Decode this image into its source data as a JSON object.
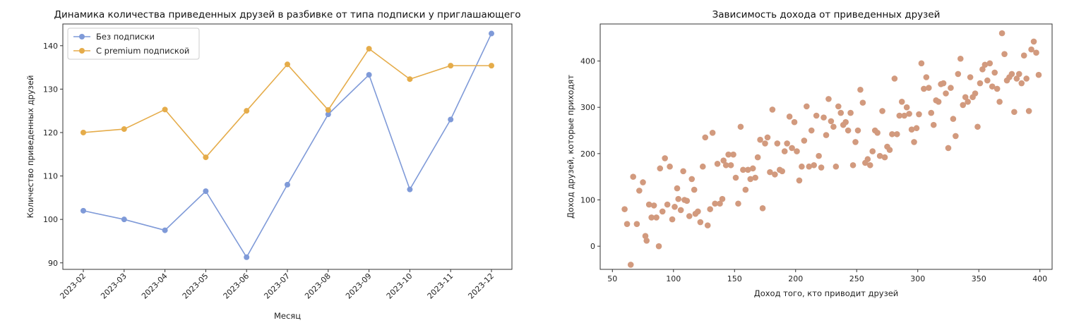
{
  "chart_data": [
    {
      "type": "line",
      "title": "Динамика количества приведенных друзей в разбивке от типа подписки у приглашающего",
      "xlabel": "Месяц",
      "ylabel": "Количество приведенных друзей",
      "categories": [
        "2023-02",
        "2023-03",
        "2023-04",
        "2023-05",
        "2023-06",
        "2023-07",
        "2023-08",
        "2023-09",
        "2023-10",
        "2023-11",
        "2023-12"
      ],
      "series": [
        {
          "name": "Без подписки",
          "color": "#7f9ad8",
          "values": [
            102,
            100,
            97.5,
            106.5,
            91.3,
            108,
            124.2,
            133.3,
            106.9,
            123,
            142.8
          ]
        },
        {
          "name": "С premium подпиской",
          "color": "#e5ac4a",
          "values": [
            120,
            120.8,
            125.3,
            114.3,
            125,
            135.7,
            125.2,
            139.3,
            132.3,
            135.4,
            135.4
          ]
        }
      ],
      "ylim": [
        88.5,
        145
      ],
      "yticks": [
        90,
        100,
        110,
        120,
        130,
        140
      ],
      "legend": "top-left",
      "grid": false
    },
    {
      "type": "scatter",
      "title": "Зависимость дохода от приведенных друзей",
      "xlabel": "Доход того, кто приводит друзей",
      "ylabel": "Доход друзей, которые приходят",
      "color": "#d29a7e",
      "xlim": [
        40,
        410
      ],
      "ylim": [
        -50,
        480
      ],
      "xticks": [
        50,
        100,
        150,
        200,
        250,
        300,
        350,
        400
      ],
      "yticks": [
        0,
        100,
        200,
        300,
        400
      ],
      "grid": false,
      "points": [
        [
          60,
          80
        ],
        [
          62,
          48
        ],
        [
          65,
          -40
        ],
        [
          67,
          150
        ],
        [
          70,
          48
        ],
        [
          72,
          120
        ],
        [
          75,
          138
        ],
        [
          77,
          22
        ],
        [
          78,
          12
        ],
        [
          80,
          90
        ],
        [
          82,
          62
        ],
        [
          84,
          88
        ],
        [
          86,
          62
        ],
        [
          88,
          0
        ],
        [
          89,
          168
        ],
        [
          91,
          75
        ],
        [
          93,
          190
        ],
        [
          95,
          90
        ],
        [
          97,
          172
        ],
        [
          99,
          58
        ],
        [
          101,
          85
        ],
        [
          103,
          125
        ],
        [
          104,
          102
        ],
        [
          106,
          78
        ],
        [
          108,
          162
        ],
        [
          109,
          100
        ],
        [
          111,
          98
        ],
        [
          113,
          65
        ],
        [
          115,
          145
        ],
        [
          117,
          122
        ],
        [
          118,
          70
        ],
        [
          120,
          75
        ],
        [
          122,
          52
        ],
        [
          124,
          172
        ],
        [
          126,
          235
        ],
        [
          128,
          45
        ],
        [
          130,
          80
        ],
        [
          132,
          245
        ],
        [
          134,
          92
        ],
        [
          136,
          178
        ],
        [
          138,
          92
        ],
        [
          140,
          102
        ],
        [
          141,
          185
        ],
        [
          143,
          175
        ],
        [
          145,
          198
        ],
        [
          147,
          175
        ],
        [
          149,
          198
        ],
        [
          151,
          148
        ],
        [
          153,
          92
        ],
        [
          155,
          258
        ],
        [
          157,
          165
        ],
        [
          159,
          122
        ],
        [
          161,
          165
        ],
        [
          163,
          145
        ],
        [
          165,
          168
        ],
        [
          167,
          148
        ],
        [
          169,
          192
        ],
        [
          171,
          230
        ],
        [
          173,
          82
        ],
        [
          175,
          222
        ],
        [
          177,
          235
        ],
        [
          179,
          160
        ],
        [
          181,
          295
        ],
        [
          183,
          155
        ],
        [
          185,
          222
        ],
        [
          187,
          165
        ],
        [
          189,
          162
        ],
        [
          191,
          205
        ],
        [
          193,
          222
        ],
        [
          195,
          280
        ],
        [
          197,
          212
        ],
        [
          199,
          268
        ],
        [
          201,
          205
        ],
        [
          203,
          142
        ],
        [
          205,
          172
        ],
        [
          207,
          228
        ],
        [
          209,
          302
        ],
        [
          211,
          172
        ],
        [
          213,
          250
        ],
        [
          215,
          175
        ],
        [
          217,
          282
        ],
        [
          219,
          195
        ],
        [
          221,
          170
        ],
        [
          223,
          278
        ],
        [
          225,
          240
        ],
        [
          227,
          318
        ],
        [
          229,
          270
        ],
        [
          231,
          258
        ],
        [
          233,
          172
        ],
        [
          235,
          302
        ],
        [
          237,
          288
        ],
        [
          239,
          262
        ],
        [
          241,
          268
        ],
        [
          243,
          250
        ],
        [
          245,
          288
        ],
        [
          247,
          175
        ],
        [
          249,
          225
        ],
        [
          251,
          250
        ],
        [
          253,
          338
        ],
        [
          255,
          310
        ],
        [
          257,
          180
        ],
        [
          259,
          188
        ],
        [
          261,
          175
        ],
        [
          263,
          205
        ],
        [
          265,
          250
        ],
        [
          267,
          245
        ],
        [
          269,
          195
        ],
        [
          271,
          292
        ],
        [
          273,
          192
        ],
        [
          275,
          215
        ],
        [
          277,
          208
        ],
        [
          279,
          242
        ],
        [
          281,
          362
        ],
        [
          283,
          242
        ],
        [
          285,
          282
        ],
        [
          287,
          312
        ],
        [
          289,
          282
        ],
        [
          291,
          300
        ],
        [
          293,
          286
        ],
        [
          295,
          252
        ],
        [
          297,
          225
        ],
        [
          299,
          255
        ],
        [
          301,
          285
        ],
        [
          303,
          395
        ],
        [
          305,
          340
        ],
        [
          307,
          365
        ],
        [
          309,
          342
        ],
        [
          311,
          288
        ],
        [
          313,
          262
        ],
        [
          315,
          315
        ],
        [
          317,
          312
        ],
        [
          319,
          350
        ],
        [
          321,
          352
        ],
        [
          323,
          330
        ],
        [
          325,
          212
        ],
        [
          327,
          342
        ],
        [
          329,
          275
        ],
        [
          331,
          238
        ],
        [
          333,
          372
        ],
        [
          335,
          405
        ],
        [
          337,
          305
        ],
        [
          339,
          322
        ],
        [
          341,
          312
        ],
        [
          343,
          365
        ],
        [
          345,
          322
        ],
        [
          347,
          330
        ],
        [
          349,
          258
        ],
        [
          351,
          352
        ],
        [
          353,
          382
        ],
        [
          355,
          392
        ],
        [
          357,
          358
        ],
        [
          359,
          395
        ],
        [
          361,
          345
        ],
        [
          363,
          375
        ],
        [
          365,
          340
        ],
        [
          367,
          312
        ],
        [
          369,
          460
        ],
        [
          371,
          415
        ],
        [
          373,
          358
        ],
        [
          375,
          365
        ],
        [
          377,
          372
        ],
        [
          379,
          290
        ],
        [
          381,
          362
        ],
        [
          383,
          372
        ],
        [
          385,
          352
        ],
        [
          387,
          412
        ],
        [
          389,
          362
        ],
        [
          391,
          292
        ],
        [
          393,
          425
        ],
        [
          395,
          442
        ],
        [
          397,
          418
        ],
        [
          399,
          370
        ]
      ]
    }
  ]
}
